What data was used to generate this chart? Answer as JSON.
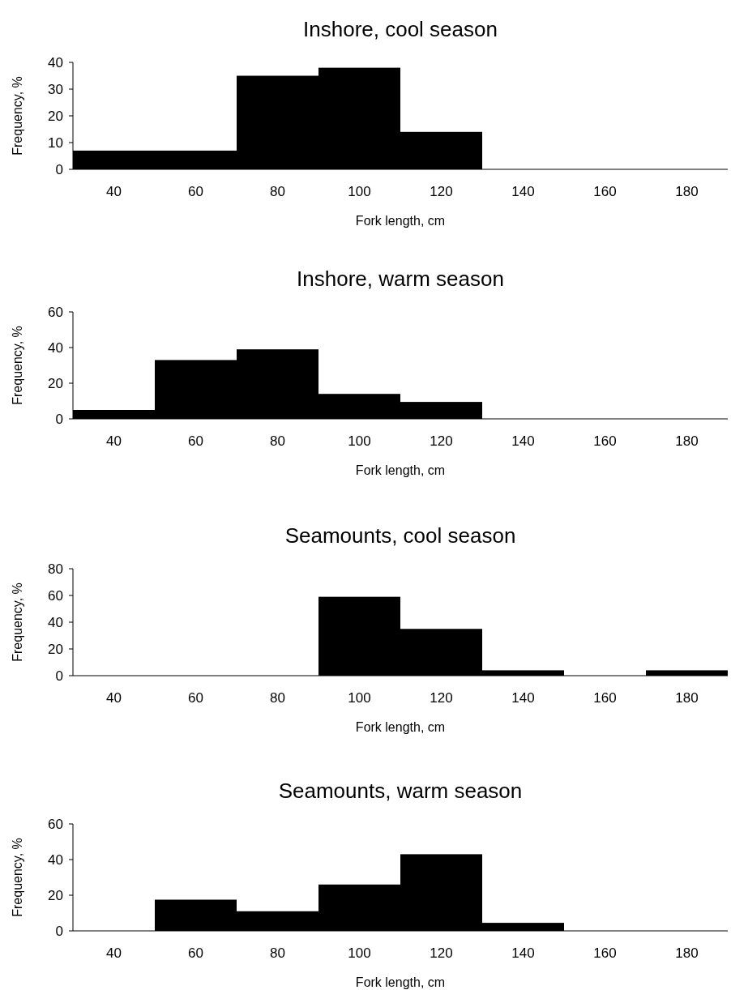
{
  "chart_data": [
    {
      "type": "bar",
      "title": "Inshore, cool season",
      "xlabel": "Fork length, cm",
      "ylabel": "Frequency, %",
      "categories": [
        "40",
        "60",
        "80",
        "100",
        "120",
        "140",
        "160",
        "180"
      ],
      "values": [
        7,
        7,
        35,
        38,
        14,
        0,
        0,
        0
      ],
      "color": "#000000",
      "ylim": [
        0,
        40
      ],
      "yticks": [
        0,
        10,
        20,
        30,
        40
      ]
    },
    {
      "type": "bar",
      "title": "Inshore, warm season",
      "xlabel": "Fork length, cm",
      "ylabel": "Frequency, %",
      "categories": [
        "40",
        "60",
        "80",
        "100",
        "120",
        "140",
        "160",
        "180"
      ],
      "values": [
        5,
        33,
        39,
        14,
        9.5,
        0,
        0,
        0
      ],
      "color": "#000000",
      "ylim": [
        0,
        60
      ],
      "yticks": [
        0,
        20,
        40,
        60
      ]
    },
    {
      "type": "bar",
      "title": "Seamounts, cool season",
      "xlabel": "Fork length, cm",
      "ylabel": "Frequency, %",
      "categories": [
        "40",
        "60",
        "80",
        "100",
        "120",
        "140",
        "160",
        "180"
      ],
      "values": [
        0,
        0,
        0,
        59,
        35,
        4,
        0,
        4
      ],
      "color": "#000000",
      "ylim": [
        0,
        80
      ],
      "yticks": [
        0,
        20,
        40,
        60,
        80
      ]
    },
    {
      "type": "bar",
      "title": "Seamounts, warm season",
      "xlabel": "Fork length, cm",
      "ylabel": "Frequency, %",
      "categories": [
        "40",
        "60",
        "80",
        "100",
        "120",
        "140",
        "160",
        "180"
      ],
      "values": [
        0,
        17.5,
        11,
        26,
        43,
        4.5,
        0,
        0
      ],
      "color": "#000000",
      "ylim": [
        0,
        60
      ],
      "yticks": [
        0,
        20,
        40,
        60
      ]
    }
  ]
}
